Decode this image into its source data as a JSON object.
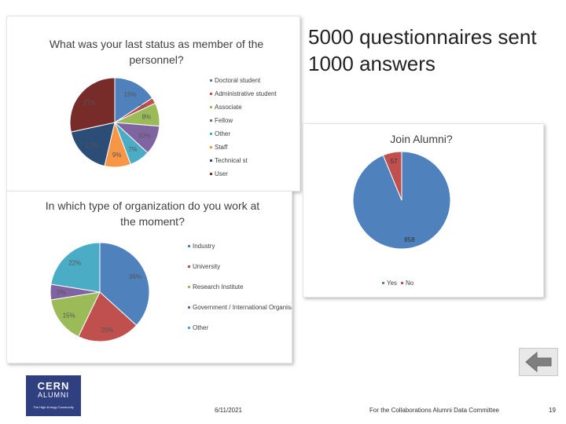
{
  "headline": "5000 questionnaires sent\n1000 answers",
  "footer": {
    "date": "6/11/2021",
    "committee": "For the Collaborations Alumni Data Committee",
    "page": "19"
  },
  "logo": {
    "line1": "CERN",
    "line2": "ALUMNI",
    "tagline": "The High-Energy Community"
  },
  "icons": {
    "back": "back-arrow-icon"
  },
  "colors": {
    "blue": "#4f81bd",
    "red": "#c0504d",
    "green": "#9bbb59",
    "purple": "#8064a2",
    "aqua": "#4bacc6",
    "orange": "#f79646",
    "navy": "#2c4d75",
    "maroon": "#772c2a"
  },
  "chart_data": [
    {
      "type": "pie",
      "title": "What was your last status as member of the personnel?",
      "categories": [
        "Doctoral student",
        "Administrative student",
        "Associate",
        "Fellow",
        "Other",
        "Staff",
        "Technical st",
        "User"
      ],
      "values": [
        15,
        2,
        8,
        10,
        7,
        9,
        17,
        27
      ],
      "labels": [
        "15%",
        "2%",
        "8%",
        "10%",
        "7%",
        "9%",
        "17%",
        "27%"
      ],
      "colors": [
        "#4f81bd",
        "#c0504d",
        "#9bbb59",
        "#8064a2",
        "#4bacc6",
        "#f79646",
        "#2c4d75",
        "#772c2a"
      ],
      "legend": "right"
    },
    {
      "type": "pie",
      "title": "In which type of organization do you work at the moment?",
      "categories": [
        "Industry",
        "University",
        "Research Institute",
        "Government / International Organisation",
        "Other"
      ],
      "values": [
        36,
        20,
        15,
        5,
        22
      ],
      "labels": [
        "36%",
        "20%",
        "15%",
        "5%",
        "22%"
      ],
      "colors": [
        "#4f81bd",
        "#c0504d",
        "#9bbb59",
        "#8064a2",
        "#4bacc6"
      ],
      "legend": "right"
    },
    {
      "type": "pie",
      "title": "Join Alumni?",
      "categories": [
        "Yes",
        "No"
      ],
      "values": [
        858,
        57
      ],
      "labels": [
        "858",
        "57"
      ],
      "colors": [
        "#4f81bd",
        "#c0504d"
      ],
      "legend": "bottom"
    }
  ]
}
